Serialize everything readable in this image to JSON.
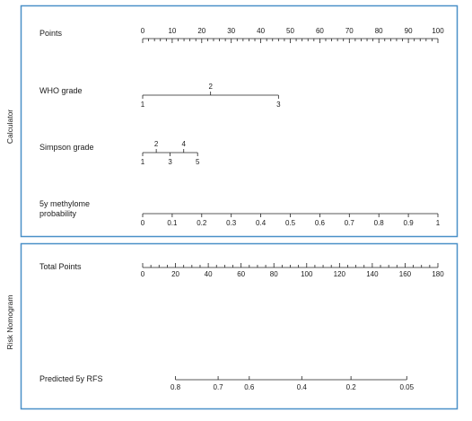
{
  "panels": {
    "calculator_label": "Calculator",
    "risk_label": "Risk Nomogram",
    "border_color": "#4a90c8"
  },
  "chart_data": {
    "type": "nomogram",
    "title": "",
    "scales": [
      {
        "name": "Points",
        "panel": "calculator",
        "range": [
          0,
          100
        ],
        "labels": [
          {
            "v": 0,
            "t": "0"
          },
          {
            "v": 10,
            "t": "10"
          },
          {
            "v": 20,
            "t": "20"
          },
          {
            "v": 30,
            "t": "30"
          },
          {
            "v": 40,
            "t": "40"
          },
          {
            "v": 50,
            "t": "50"
          },
          {
            "v": 60,
            "t": "60"
          },
          {
            "v": 70,
            "t": "70"
          },
          {
            "v": 80,
            "t": "80"
          },
          {
            "v": 90,
            "t": "90"
          },
          {
            "v": 100,
            "t": "100"
          }
        ],
        "minor_step": 2
      },
      {
        "name": "WHO grade",
        "panel": "calculator",
        "labels": [
          {
            "points": 0,
            "t": "1",
            "pos": "below"
          },
          {
            "points": 23,
            "t": "2",
            "pos": "above"
          },
          {
            "points": 46,
            "t": "3",
            "pos": "below"
          }
        ]
      },
      {
        "name": "Simpson grade",
        "panel": "calculator",
        "labels": [
          {
            "points": 0,
            "t": "1",
            "pos": "below"
          },
          {
            "points": 4.6,
            "t": "2",
            "pos": "above"
          },
          {
            "points": 9.3,
            "t": "3",
            "pos": "below"
          },
          {
            "points": 13.9,
            "t": "4",
            "pos": "above"
          },
          {
            "points": 18.6,
            "t": "5",
            "pos": "below"
          }
        ]
      },
      {
        "name": "5y methylome\nprobability",
        "panel": "calculator",
        "labels": [
          {
            "points": 0,
            "t": "0"
          },
          {
            "points": 10,
            "t": "0.1"
          },
          {
            "points": 20,
            "t": "0.2"
          },
          {
            "points": 30,
            "t": "0.3"
          },
          {
            "points": 40,
            "t": "0.4"
          },
          {
            "points": 50,
            "t": "0.5"
          },
          {
            "points": 60,
            "t": "0.6"
          },
          {
            "points": 70,
            "t": "0.7"
          },
          {
            "points": 80,
            "t": "0.8"
          },
          {
            "points": 90,
            "t": "0.9"
          },
          {
            "points": 100,
            "t": "1"
          }
        ]
      },
      {
        "name": "Total Points",
        "panel": "risk",
        "range": [
          0,
          180
        ],
        "labels": [
          {
            "v": 0,
            "t": "0"
          },
          {
            "v": 20,
            "t": "20"
          },
          {
            "v": 40,
            "t": "40"
          },
          {
            "v": 60,
            "t": "60"
          },
          {
            "v": 80,
            "t": "80"
          },
          {
            "v": 100,
            "t": "100"
          },
          {
            "v": 120,
            "t": "120"
          },
          {
            "v": 140,
            "t": "140"
          },
          {
            "v": 160,
            "t": "160"
          },
          {
            "v": 180,
            "t": "180"
          }
        ],
        "minor_step": 5
      },
      {
        "name": "Predicted 5y RFS",
        "panel": "risk",
        "labels": [
          {
            "total": 20,
            "t": "0.8"
          },
          {
            "total": 46,
            "t": "0.7"
          },
          {
            "total": 65,
            "t": "0.6"
          },
          {
            "total": 97,
            "t": "0.4"
          },
          {
            "total": 127,
            "t": "0.2"
          },
          {
            "total": 161,
            "t": "0.05"
          }
        ]
      }
    ]
  }
}
